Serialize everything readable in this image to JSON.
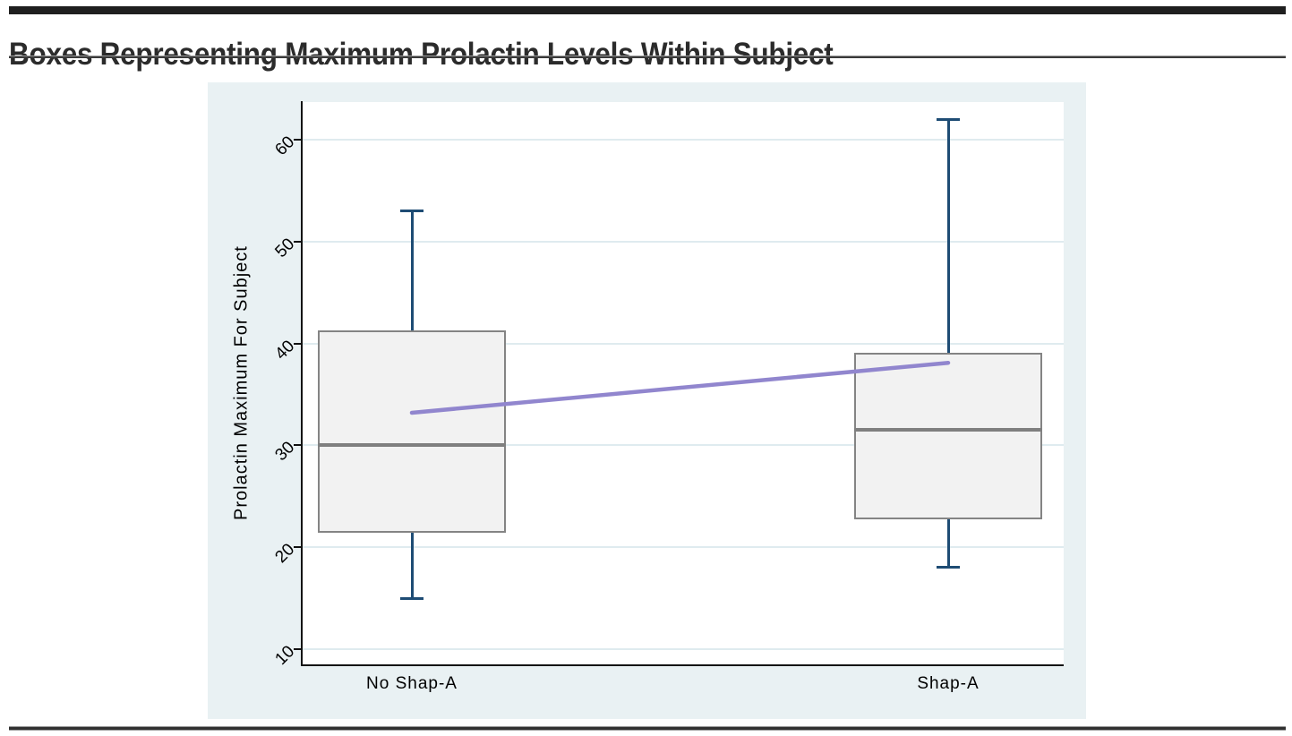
{
  "page": {
    "title": "Boxes Representing Maximum Prolactin Levels Within Subject"
  },
  "chart_data": {
    "type": "box",
    "title": "Boxes Representing Maximum Prolactin Levels Within Subject",
    "xlabel": "",
    "ylabel": "Prolactin Maximum For Subject",
    "yticks": [
      10,
      20,
      30,
      40,
      50,
      60
    ],
    "ylim": [
      8.5,
      63.7
    ],
    "grid": true,
    "legend": "none",
    "categories": [
      "No Shap-A",
      "Shap-A"
    ],
    "series": [
      {
        "name": "No Shap-A",
        "whisker_low": 15,
        "q1": 21.4,
        "median": 30,
        "q3": 41.3,
        "whisker_high": 53,
        "mean": 33.2
      },
      {
        "name": "Shap-A",
        "whisker_low": 18,
        "q1": 22.7,
        "median": 31.5,
        "q3": 39.1,
        "whisker_high": 62,
        "mean": 38.1
      }
    ],
    "mean_line": {
      "description": "line connecting group means",
      "values": [
        33.2,
        38.1
      ]
    },
    "colors": {
      "region_background": "#e9f1f3",
      "plot_background": "#ffffff",
      "gridline": "#dfebef",
      "box_fill": "#f2f2f2",
      "box_border": "#848484",
      "median": "#7f7f7f",
      "whisker": "#1e4c74",
      "mean_line": "#9186ce",
      "axis": "#111111",
      "title_text": "#2b2b2b"
    }
  }
}
